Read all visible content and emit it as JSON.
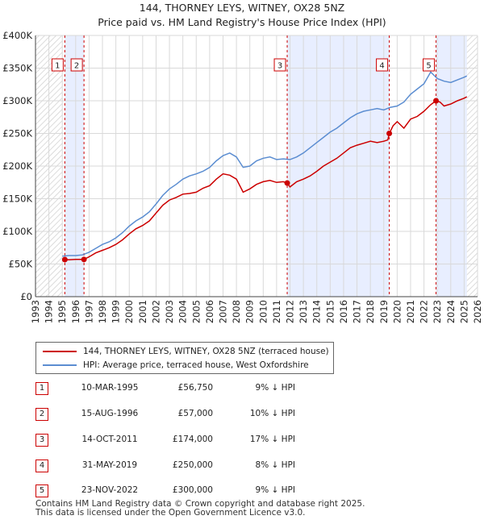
{
  "header": {
    "title": "144, THORNEY LEYS, WITNEY, OX28 5NZ",
    "subtitle": "Price paid vs. HM Land Registry's House Price Index (HPI)"
  },
  "colors": {
    "price_line": "#cc0000",
    "hpi_line": "#5b8dd1",
    "shade": "#e8eeff",
    "grid": "#d9d9d9",
    "marker_line": "#cc0000"
  },
  "chart_data": {
    "type": "line",
    "title": "144, THORNEY LEYS, WITNEY, OX28 5NZ",
    "xlabel": "",
    "ylabel": "",
    "xlim": [
      1993,
      2026
    ],
    "ylim": [
      0,
      400000
    ],
    "y_ticks": [
      0,
      50000,
      100000,
      150000,
      200000,
      250000,
      300000,
      350000,
      400000
    ],
    "y_tick_labels": [
      "£0",
      "£50K",
      "£100K",
      "£150K",
      "£200K",
      "£250K",
      "£300K",
      "£350K",
      "£400K"
    ],
    "x_ticks": [
      "1993",
      "1994",
      "1995",
      "1996",
      "1997",
      "1998",
      "1999",
      "2000",
      "2001",
      "2002",
      "2003",
      "2004",
      "2005",
      "2006",
      "2007",
      "2008",
      "2009",
      "2010",
      "2011",
      "2012",
      "2013",
      "2014",
      "2015",
      "2016",
      "2017",
      "2018",
      "2019",
      "2020",
      "2021",
      "2022",
      "2023",
      "2024",
      "2025",
      "2026"
    ],
    "shaded_periods": [
      [
        1995.19,
        1996.62
      ],
      [
        2011.79,
        2019.41
      ],
      [
        2022.9,
        2025.2
      ]
    ],
    "hatched_regions": [
      [
        1993,
        1995.0
      ],
      [
        2025.2,
        2026
      ]
    ],
    "series": [
      {
        "name": "144, THORNEY LEYS, WITNEY, OX28 5NZ (terraced house)",
        "color": "#cc0000",
        "x": [
          1995.19,
          1995.5,
          1996.0,
          1996.62,
          1997.0,
          1997.5,
          1998.0,
          1998.5,
          1999.0,
          1999.5,
          2000.0,
          2000.5,
          2001.0,
          2001.5,
          2002.0,
          2002.5,
          2003.0,
          2003.5,
          2004.0,
          2004.5,
          2005.0,
          2005.5,
          2006.0,
          2006.5,
          2007.0,
          2007.5,
          2008.0,
          2008.5,
          2009.0,
          2009.5,
          2010.0,
          2010.5,
          2011.0,
          2011.5,
          2011.79,
          2012.0,
          2012.5,
          2013.0,
          2013.5,
          2014.0,
          2014.5,
          2015.0,
          2015.5,
          2016.0,
          2016.5,
          2017.0,
          2017.5,
          2018.0,
          2018.5,
          2019.0,
          2019.3,
          2019.41,
          2019.7,
          2020.0,
          2020.5,
          2021.0,
          2021.5,
          2022.0,
          2022.5,
          2022.9,
          2023.2,
          2023.5,
          2024.0,
          2024.5,
          2025.0,
          2025.2
        ],
        "y": [
          56750,
          56500,
          57000,
          57000,
          61000,
          67000,
          71000,
          75000,
          80000,
          87000,
          96000,
          104000,
          109000,
          116000,
          128000,
          140000,
          148000,
          152000,
          157000,
          158000,
          160000,
          166000,
          170000,
          180000,
          188000,
          186000,
          180000,
          160000,
          165000,
          172000,
          176000,
          178000,
          175000,
          176000,
          174000,
          168000,
          176000,
          180000,
          185000,
          192000,
          200000,
          206000,
          212000,
          220000,
          228000,
          232000,
          235000,
          238000,
          236000,
          238000,
          240000,
          250000,
          262000,
          268000,
          258000,
          272000,
          276000,
          284000,
          294000,
          300000,
          298000,
          292000,
          295000,
          300000,
          304000,
          306000
        ]
      },
      {
        "name": "HPI: Average price, terraced house, West Oxfordshire",
        "color": "#5b8dd1",
        "x": [
          1995.0,
          1995.5,
          1996.0,
          1996.5,
          1997.0,
          1997.5,
          1998.0,
          1998.5,
          1999.0,
          1999.5,
          2000.0,
          2000.5,
          2001.0,
          2001.5,
          2002.0,
          2002.5,
          2003.0,
          2003.5,
          2004.0,
          2004.5,
          2005.0,
          2005.5,
          2006.0,
          2006.5,
          2007.0,
          2007.5,
          2008.0,
          2008.5,
          2009.0,
          2009.5,
          2010.0,
          2010.5,
          2011.0,
          2011.5,
          2012.0,
          2012.5,
          2013.0,
          2013.5,
          2014.0,
          2014.5,
          2015.0,
          2015.5,
          2016.0,
          2016.5,
          2017.0,
          2017.5,
          2018.0,
          2018.5,
          2019.0,
          2019.5,
          2020.0,
          2020.5,
          2021.0,
          2021.5,
          2022.0,
          2022.5,
          2023.0,
          2023.5,
          2024.0,
          2024.5,
          2025.0,
          2025.2
        ],
        "y": [
          62000,
          63000,
          63000,
          64000,
          68000,
          74000,
          80000,
          84000,
          90000,
          98000,
          108000,
          116000,
          122000,
          130000,
          142000,
          155000,
          165000,
          172000,
          180000,
          185000,
          188000,
          192000,
          198000,
          208000,
          216000,
          220000,
          214000,
          198000,
          200000,
          208000,
          212000,
          214000,
          210000,
          211000,
          210000,
          214000,
          220000,
          228000,
          236000,
          244000,
          252000,
          258000,
          266000,
          274000,
          280000,
          284000,
          286000,
          288000,
          286000,
          290000,
          292000,
          298000,
          310000,
          318000,
          326000,
          344000,
          334000,
          330000,
          328000,
          332000,
          336000,
          338000
        ]
      }
    ],
    "sale_markers": [
      {
        "label": "1",
        "x": 1995.19,
        "y": 56750
      },
      {
        "label": "2",
        "x": 1996.62,
        "y": 57000
      },
      {
        "label": "3",
        "x": 2011.79,
        "y": 174000
      },
      {
        "label": "4",
        "x": 2019.41,
        "y": 250000
      },
      {
        "label": "5",
        "x": 2022.9,
        "y": 300000
      }
    ]
  },
  "legend": {
    "items": [
      {
        "label": "144, THORNEY LEYS, WITNEY, OX28 5NZ (terraced house)",
        "color": "#cc0000"
      },
      {
        "label": "HPI: Average price, terraced house, West Oxfordshire",
        "color": "#5b8dd1"
      }
    ]
  },
  "sales_table": [
    {
      "num": "1",
      "date": "10-MAR-1995",
      "price": "£56,750",
      "hpi": "9% ↓ HPI"
    },
    {
      "num": "2",
      "date": "15-AUG-1996",
      "price": "£57,000",
      "hpi": "10% ↓ HPI"
    },
    {
      "num": "3",
      "date": "14-OCT-2011",
      "price": "£174,000",
      "hpi": "17% ↓ HPI"
    },
    {
      "num": "4",
      "date": "31-MAY-2019",
      "price": "£250,000",
      "hpi": "8% ↓ HPI"
    },
    {
      "num": "5",
      "date": "23-NOV-2022",
      "price": "£300,000",
      "hpi": "9% ↓ HPI"
    }
  ],
  "footer": {
    "line1": "Contains HM Land Registry data © Crown copyright and database right 2025.",
    "line2": "This data is licensed under the Open Government Licence v3.0."
  }
}
